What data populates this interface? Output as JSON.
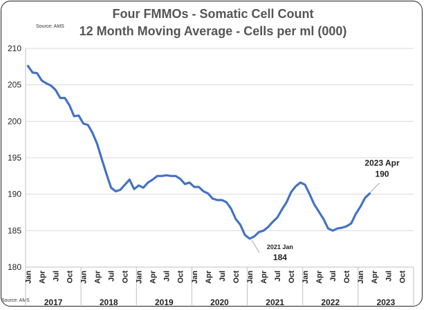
{
  "chart_data": {
    "type": "line",
    "title": "Four FMMOs - Somatic Cell Count",
    "subtitle": "12 Month Moving Average - Cells per ml (000)",
    "source": "Source: AMS",
    "source_bottom": "Source: AMS",
    "ylim": [
      180,
      210
    ],
    "yticks": [
      180,
      185,
      190,
      195,
      200,
      205,
      210
    ],
    "grid": "horizontal",
    "month_labels": [
      "Jan",
      "Apr",
      "Jul",
      "Oct"
    ],
    "years": [
      "2017",
      "2018",
      "2019",
      "2020",
      "2021",
      "2022",
      "2023"
    ],
    "series": [
      {
        "name": "Somatic Cell Count 12 Month Moving Average",
        "color": "#4472C4",
        "values": [
          207.6,
          206.7,
          206.6,
          205.6,
          205.2,
          204.9,
          204.3,
          203.2,
          203.2,
          202.2,
          200.7,
          200.8,
          199.7,
          199.5,
          198.4,
          196.9,
          194.8,
          192.8,
          190.9,
          190.4,
          190.6,
          191.3,
          192.0,
          190.7,
          191.2,
          190.9,
          191.6,
          192.0,
          192.5,
          192.5,
          192.6,
          192.5,
          192.5,
          192.1,
          191.4,
          191.6,
          191.0,
          191.0,
          190.4,
          190.1,
          189.4,
          189.2,
          189.2,
          188.9,
          188.0,
          186.6,
          185.8,
          184.4,
          183.9,
          184.2,
          184.8,
          185.0,
          185.5,
          186.2,
          186.8,
          187.9,
          188.9,
          190.3,
          191.1,
          191.6,
          191.3,
          190.0,
          188.6,
          187.6,
          186.6,
          185.3,
          185.0,
          185.3,
          185.4,
          185.6,
          186.0,
          187.3,
          188.3,
          189.5,
          190.1
        ]
      }
    ],
    "annotations": [
      {
        "label": "2021 Jan",
        "value_label": "184",
        "index": 48
      },
      {
        "label": "2023 Apr",
        "value_label": "190",
        "index": 75
      }
    ]
  }
}
